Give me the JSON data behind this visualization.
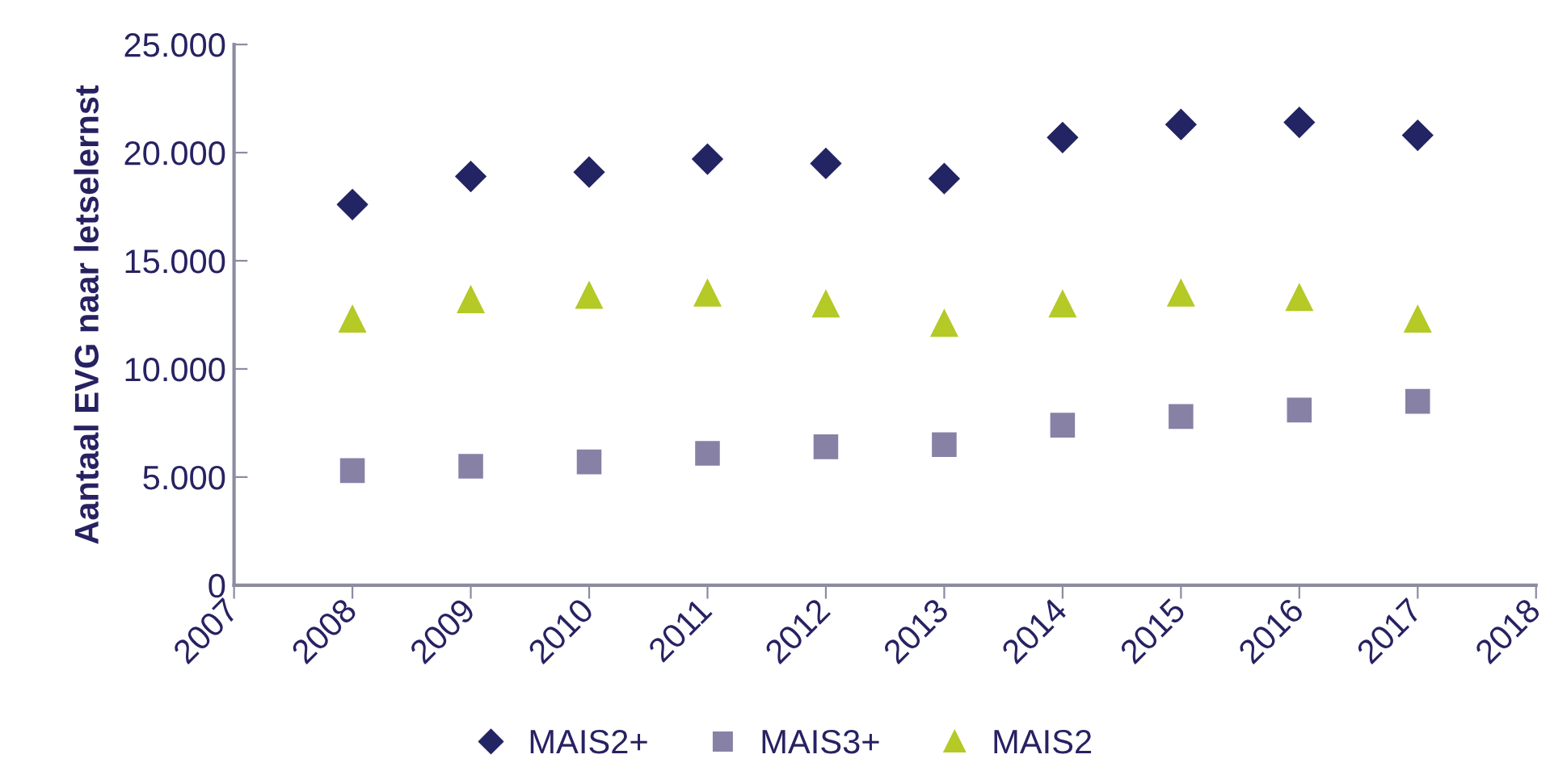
{
  "chart_data": {
    "type": "scatter",
    "ylabel": "Aantaal EVG naar letselernst",
    "x": [
      2008,
      2009,
      2010,
      2011,
      2012,
      2013,
      2014,
      2015,
      2016,
      2017
    ],
    "series": [
      {
        "name": "MAIS2+",
        "color": "#232463",
        "marker": "diamond",
        "values": [
          17600,
          18900,
          19100,
          19700,
          19500,
          18800,
          20700,
          21300,
          21400,
          20800
        ]
      },
      {
        "name": "MAIS3+",
        "color": "#8781a6",
        "marker": "square",
        "values": [
          5300,
          5500,
          5700,
          6100,
          6400,
          6500,
          7400,
          7800,
          8100,
          8500
        ]
      },
      {
        "name": "MAIS2",
        "color": "#b5c927",
        "marker": "triangle",
        "values": [
          12300,
          13200,
          13400,
          13500,
          13000,
          12100,
          13000,
          13500,
          13300,
          12300
        ]
      }
    ],
    "xlim": [
      2007,
      2018
    ],
    "xticks": [
      2007,
      2008,
      2009,
      2010,
      2011,
      2012,
      2013,
      2014,
      2015,
      2016,
      2017,
      2018
    ],
    "ylim": [
      0,
      25000
    ],
    "yticks": [
      0,
      {
        "value": 5000,
        "label": "5.000"
      },
      {
        "value": 10000,
        "label": "10.000"
      },
      {
        "value": 15000,
        "label": "15.000"
      },
      {
        "value": 20000,
        "label": "20.000"
      },
      {
        "value": 25000,
        "label": "25.000"
      }
    ],
    "grid": false,
    "legend": "bottom"
  }
}
